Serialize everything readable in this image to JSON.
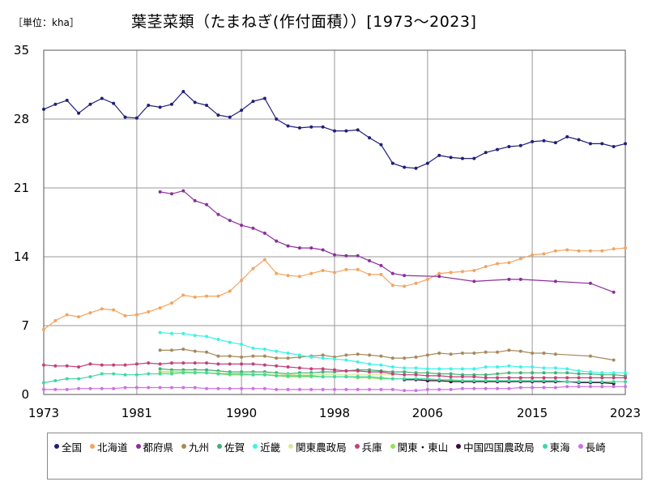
{
  "header": {
    "unit_label": "［単位：kha］",
    "title": "葉茎菜類（たまねぎ(作付面積））[1973～2023]"
  },
  "chart_data": {
    "type": "line",
    "title": "葉茎菜類（たまねぎ(作付面積））[1973～2023]",
    "unit": "kha",
    "xlim": [
      1973,
      2023
    ],
    "ylim": [
      0,
      35
    ],
    "x_ticks": [
      "1973",
      "1981",
      "1990",
      "1998",
      "2006",
      "2015",
      "2023"
    ],
    "x_tick_values": [
      1973,
      1981,
      1990,
      1998,
      2006,
      2015,
      2023
    ],
    "y_ticks": [
      "0",
      "7",
      "14",
      "21",
      "28",
      "35"
    ],
    "y_tick_values": [
      0,
      7,
      14,
      21,
      28,
      35
    ],
    "grid": true,
    "legend_position": "bottom",
    "series": [
      {
        "name": "全国",
        "color": "#1f1f7a",
        "x": [
          1973,
          1974,
          1975,
          1976,
          1977,
          1978,
          1979,
          1980,
          1981,
          1982,
          1983,
          1984,
          1985,
          1986,
          1987,
          1988,
          1989,
          1990,
          1991,
          1992,
          1993,
          1994,
          1995,
          1996,
          1997,
          1998,
          1999,
          2000,
          2001,
          2002,
          2003,
          2004,
          2005,
          2006,
          2007,
          2008,
          2009,
          2010,
          2011,
          2012,
          2013,
          2014,
          2015,
          2016,
          2017,
          2018,
          2019,
          2020,
          2021,
          2022,
          2023
        ],
        "values": [
          29.0,
          29.5,
          29.9,
          28.6,
          29.5,
          30.1,
          29.6,
          28.2,
          28.1,
          29.4,
          29.2,
          29.5,
          30.8,
          29.7,
          29.4,
          28.4,
          28.2,
          28.9,
          29.8,
          30.1,
          28.0,
          27.3,
          27.1,
          27.2,
          27.2,
          26.8,
          26.8,
          26.9,
          26.1,
          25.4,
          23.5,
          23.1,
          23.0,
          23.5,
          24.3,
          24.1,
          24.0,
          24.0,
          24.6,
          24.9,
          25.2,
          25.3,
          25.7,
          25.8,
          25.6,
          26.2,
          25.9,
          25.5,
          25.5,
          25.2,
          25.5
        ]
      },
      {
        "name": "北海道",
        "color": "#f4a460",
        "x": [
          1973,
          1974,
          1975,
          1976,
          1977,
          1978,
          1979,
          1980,
          1981,
          1982,
          1983,
          1984,
          1985,
          1986,
          1987,
          1988,
          1989,
          1990,
          1991,
          1992,
          1993,
          1994,
          1995,
          1996,
          1997,
          1998,
          1999,
          2000,
          2001,
          2002,
          2003,
          2004,
          2005,
          2006,
          2007,
          2008,
          2009,
          2010,
          2011,
          2012,
          2013,
          2014,
          2015,
          2016,
          2017,
          2018,
          2019,
          2020,
          2021,
          2022,
          2023
        ],
        "values": [
          6.6,
          7.5,
          8.1,
          7.9,
          8.3,
          8.7,
          8.6,
          8.0,
          8.1,
          8.4,
          8.8,
          9.3,
          10.1,
          9.9,
          10.0,
          10.0,
          10.5,
          11.6,
          12.8,
          13.7,
          12.3,
          12.1,
          12.0,
          12.3,
          12.6,
          12.4,
          12.7,
          12.7,
          12.2,
          12.2,
          11.1,
          11.0,
          11.3,
          11.7,
          12.3,
          12.4,
          12.5,
          12.6,
          13.0,
          13.3,
          13.4,
          13.8,
          14.2,
          14.3,
          14.6,
          14.7,
          14.6,
          14.6,
          14.6,
          14.8,
          14.9
        ]
      },
      {
        "name": "都府県",
        "color": "#8b2f9b",
        "x": [
          1983,
          1984,
          1985,
          1986,
          1987,
          1988,
          1989,
          1990,
          1991,
          1992,
          1993,
          1994,
          1995,
          1996,
          1997,
          1998,
          1999,
          2000,
          2001,
          2002,
          2003,
          2004,
          2007,
          2010,
          2013,
          2014,
          2017,
          2020,
          2022
        ],
        "values": [
          20.6,
          20.4,
          20.7,
          19.7,
          19.3,
          18.3,
          17.7,
          17.2,
          16.9,
          16.4,
          15.6,
          15.1,
          14.9,
          14.9,
          14.7,
          14.2,
          14.1,
          14.1,
          13.6,
          13.1,
          12.3,
          12.1,
          12.0,
          11.5,
          11.7,
          11.7,
          11.5,
          11.3,
          10.4
        ]
      },
      {
        "name": "九州",
        "color": "#a68a5b",
        "x": [
          1983,
          1984,
          1985,
          1986,
          1987,
          1988,
          1989,
          1990,
          1991,
          1992,
          1993,
          1994,
          1995,
          1996,
          1997,
          1998,
          1999,
          2000,
          2001,
          2002,
          2003,
          2004,
          2005,
          2006,
          2007,
          2008,
          2009,
          2010,
          2011,
          2012,
          2013,
          2014,
          2015,
          2016,
          2017,
          2020,
          2022
        ],
        "values": [
          4.5,
          4.5,
          4.6,
          4.4,
          4.3,
          3.9,
          3.9,
          3.8,
          3.9,
          3.9,
          3.7,
          3.7,
          3.8,
          3.9,
          4.0,
          3.8,
          4.0,
          4.1,
          4.0,
          3.9,
          3.7,
          3.7,
          3.8,
          4.0,
          4.2,
          4.1,
          4.2,
          4.2,
          4.3,
          4.3,
          4.5,
          4.4,
          4.2,
          4.2,
          4.1,
          3.9,
          3.5
        ]
      },
      {
        "name": "佐賀",
        "color": "#3cb371",
        "x": [
          1983,
          1984,
          1985,
          1986,
          1987,
          1988,
          1989,
          1990,
          1991,
          1992,
          1993,
          1994,
          1995,
          1996,
          1997,
          1998,
          1999,
          2000,
          2001,
          2002,
          2003,
          2004,
          2005,
          2006,
          2007,
          2008,
          2009,
          2010,
          2011,
          2012,
          2013,
          2014,
          2015,
          2016,
          2017,
          2018,
          2019,
          2020,
          2021,
          2022,
          2023
        ],
        "values": [
          2.6,
          2.5,
          2.5,
          2.5,
          2.5,
          2.4,
          2.3,
          2.3,
          2.3,
          2.3,
          2.2,
          2.1,
          2.2,
          2.2,
          2.3,
          2.3,
          2.4,
          2.5,
          2.5,
          2.4,
          2.3,
          2.3,
          2.2,
          2.2,
          2.1,
          2.1,
          2.0,
          2.0,
          2.0,
          2.1,
          2.2,
          2.2,
          2.2,
          2.2,
          2.2,
          2.2,
          2.1,
          2.1,
          2.0,
          2.0,
          1.9
        ]
      },
      {
        "name": "近畿",
        "color": "#3ff2e6",
        "x": [
          1983,
          1984,
          1985,
          1986,
          1987,
          1988,
          1989,
          1990,
          1991,
          1992,
          1993,
          1994,
          1995,
          1996,
          1997,
          1998,
          1999,
          2000,
          2001,
          2002,
          2003,
          2004,
          2005,
          2006,
          2007,
          2008,
          2009,
          2010,
          2011,
          2012,
          2013,
          2014,
          2015,
          2016,
          2017,
          2018,
          2019,
          2020,
          2021,
          2022,
          2023
        ],
        "values": [
          6.3,
          6.2,
          6.2,
          6.0,
          5.9,
          5.6,
          5.3,
          5.1,
          4.7,
          4.6,
          4.4,
          4.2,
          4.0,
          3.8,
          3.7,
          3.6,
          3.5,
          3.3,
          3.1,
          3.0,
          2.8,
          2.7,
          2.7,
          2.6,
          2.6,
          2.6,
          2.6,
          2.6,
          2.8,
          2.8,
          2.9,
          2.8,
          2.8,
          2.7,
          2.7,
          2.6,
          2.4,
          2.3,
          2.2,
          2.2,
          2.2
        ]
      },
      {
        "name": "関東農政局",
        "color": "#d8e8a0",
        "x": [
          1983,
          1984,
          1985,
          1986,
          1987,
          1988,
          1989,
          1990,
          1991,
          1992,
          1993,
          1994,
          1995,
          1996,
          1997,
          1998,
          1999,
          2000,
          2001,
          2002,
          2003
        ],
        "values": [
          2.3,
          2.3,
          2.3,
          2.3,
          2.2,
          2.2,
          2.1,
          2.1,
          2.1,
          2.1,
          2.0,
          2.0,
          2.0,
          2.0,
          2.0,
          2.0,
          2.0,
          2.0,
          2.0,
          2.0,
          2.0
        ]
      },
      {
        "name": "兵庫",
        "color": "#c2417a",
        "x": [
          1973,
          1974,
          1975,
          1976,
          1977,
          1978,
          1979,
          1980,
          1981,
          1982,
          1983,
          1984,
          1985,
          1986,
          1987,
          1988,
          1989,
          1990,
          1991,
          1992,
          1993,
          1994,
          1995,
          1996,
          1997,
          1998,
          1999,
          2000,
          2001,
          2002,
          2003,
          2004,
          2005,
          2006,
          2007,
          2008,
          2009,
          2010,
          2011,
          2012,
          2013,
          2014,
          2015,
          2016,
          2017,
          2018,
          2019,
          2020,
          2021,
          2022,
          2023
        ],
        "values": [
          3.0,
          2.9,
          2.9,
          2.8,
          3.1,
          3.0,
          3.0,
          3.0,
          3.1,
          3.2,
          3.1,
          3.2,
          3.2,
          3.2,
          3.2,
          3.1,
          3.1,
          3.1,
          3.1,
          3.0,
          2.9,
          2.8,
          2.7,
          2.6,
          2.6,
          2.5,
          2.4,
          2.4,
          2.3,
          2.3,
          2.1,
          2.0,
          2.0,
          1.9,
          1.9,
          1.8,
          1.8,
          1.8,
          1.7,
          1.7,
          1.7,
          1.7,
          1.7,
          1.7,
          1.7,
          1.7,
          1.7,
          1.7,
          1.7,
          1.7,
          1.7
        ]
      },
      {
        "name": "関東・東山",
        "color": "#9ade5a",
        "x": [
          1983,
          1984,
          1985,
          1986,
          1987,
          1988,
          1989,
          1990,
          1991,
          1992,
          1993,
          1994,
          1995,
          1996,
          1997,
          1998,
          1999,
          2000,
          2001,
          2002,
          2003,
          2004,
          2005,
          2006,
          2007,
          2008,
          2009,
          2010,
          2011,
          2012,
          2013,
          2014,
          2015,
          2016,
          2017,
          2018,
          2019,
          2020,
          2021,
          2022
        ],
        "values": [
          2.3,
          2.3,
          2.3,
          2.2,
          2.2,
          2.1,
          2.0,
          2.0,
          2.0,
          2.0,
          1.9,
          1.8,
          1.8,
          1.8,
          1.8,
          1.8,
          1.8,
          1.7,
          1.7,
          1.6,
          1.6,
          1.6,
          1.5,
          1.5,
          1.5,
          1.4,
          1.4,
          1.4,
          1.4,
          1.4,
          1.4,
          1.4,
          1.4,
          1.3,
          1.3,
          1.3,
          1.3,
          1.3,
          1.2,
          1.2
        ]
      },
      {
        "name": "中国四国農政局",
        "color": "#3c0a3c",
        "x": [
          2004,
          2005,
          2006,
          2007,
          2008,
          2009,
          2010,
          2011,
          2012,
          2013,
          2014,
          2015,
          2016,
          2017,
          2018,
          2019,
          2020,
          2021,
          2022
        ],
        "values": [
          1.5,
          1.5,
          1.4,
          1.4,
          1.3,
          1.3,
          1.3,
          1.3,
          1.3,
          1.3,
          1.3,
          1.3,
          1.3,
          1.3,
          1.3,
          1.2,
          1.2,
          1.2,
          1.1
        ]
      },
      {
        "name": "東海",
        "color": "#40d8a0",
        "x": [
          1973,
          1974,
          1975,
          1976,
          1977,
          1978,
          1979,
          1980,
          1981,
          1982,
          1983,
          1984,
          1985,
          1986,
          1987,
          1988,
          1989,
          1990,
          1991,
          1992,
          1993,
          1994,
          1995,
          1996,
          1997,
          1998,
          1999,
          2000,
          2001,
          2002,
          2003,
          2004,
          2005,
          2006,
          2007,
          2008,
          2009,
          2010,
          2011,
          2012,
          2013,
          2014,
          2015,
          2016,
          2017,
          2018,
          2019,
          2020,
          2021,
          2022,
          2023
        ],
        "values": [
          1.2,
          1.4,
          1.6,
          1.6,
          1.8,
          2.1,
          2.1,
          2.0,
          2.0,
          2.1,
          2.1,
          2.1,
          2.2,
          2.2,
          2.2,
          2.1,
          2.1,
          2.1,
          2.0,
          2.0,
          1.9,
          1.9,
          1.9,
          1.9,
          1.8,
          1.8,
          1.8,
          1.8,
          1.8,
          1.7,
          1.6,
          1.6,
          1.6,
          1.6,
          1.5,
          1.5,
          1.4,
          1.4,
          1.4,
          1.4,
          1.4,
          1.4,
          1.4,
          1.4,
          1.4,
          1.3,
          1.3,
          1.3,
          1.3,
          1.3,
          1.3
        ]
      },
      {
        "name": "長崎",
        "color": "#d070e8",
        "x": [
          1973,
          1974,
          1975,
          1976,
          1977,
          1978,
          1979,
          1980,
          1981,
          1982,
          1983,
          1984,
          1985,
          1986,
          1987,
          1988,
          1989,
          1990,
          1991,
          1992,
          1993,
          1994,
          1995,
          1996,
          1997,
          1998,
          1999,
          2000,
          2001,
          2002,
          2003,
          2004,
          2005,
          2006,
          2007,
          2008,
          2009,
          2010,
          2011,
          2012,
          2013,
          2014,
          2015,
          2016,
          2017,
          2018,
          2019,
          2020,
          2021,
          2022,
          2023
        ],
        "values": [
          0.5,
          0.5,
          0.5,
          0.6,
          0.6,
          0.6,
          0.6,
          0.7,
          0.7,
          0.7,
          0.7,
          0.7,
          0.7,
          0.7,
          0.6,
          0.6,
          0.6,
          0.6,
          0.6,
          0.6,
          0.5,
          0.5,
          0.5,
          0.5,
          0.5,
          0.5,
          0.5,
          0.5,
          0.5,
          0.5,
          0.5,
          0.4,
          0.4,
          0.5,
          0.5,
          0.5,
          0.6,
          0.6,
          0.6,
          0.6,
          0.6,
          0.7,
          0.7,
          0.7,
          0.7,
          0.8,
          0.8,
          0.8,
          0.8,
          0.8,
          0.8
        ]
      }
    ]
  }
}
